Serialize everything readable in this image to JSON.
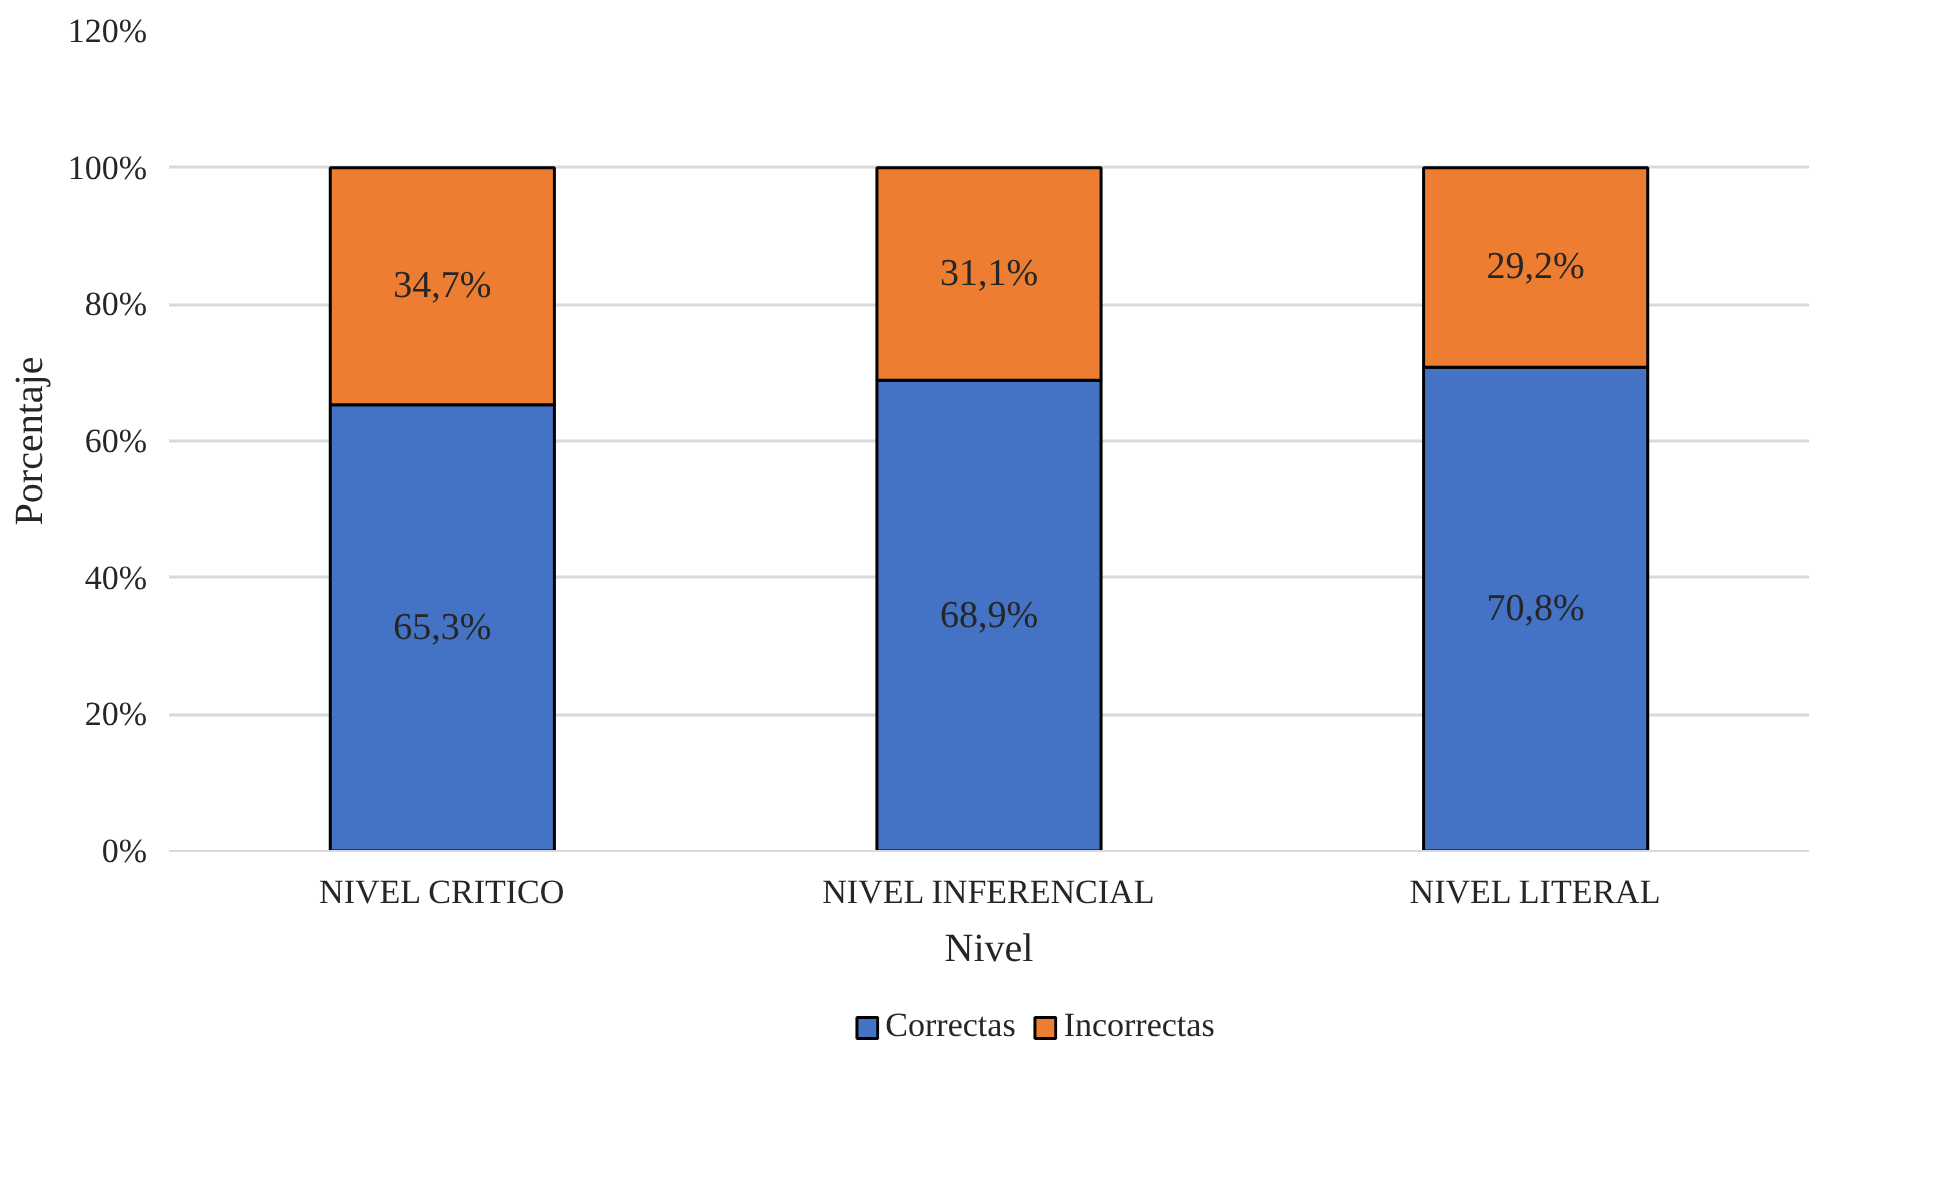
{
  "chart_data": {
    "type": "bar",
    "stacked": true,
    "xlabel": "Nivel",
    "ylabel": "Porcentaje",
    "categories": [
      "NIVEL CRITICO",
      "NIVEL INFERENCIAL",
      "NIVEL LITERAL"
    ],
    "series": [
      {
        "name": "Correctas",
        "color": "#4472c4",
        "values": [
          65.3,
          68.9,
          70.8
        ],
        "value_labels": [
          "65,3%",
          "68,9%",
          "70,8%"
        ]
      },
      {
        "name": "Incorrectas",
        "color": "#ed7d31",
        "values": [
          34.7,
          31.1,
          29.2
        ],
        "value_labels": [
          "34,7%",
          "31,1%",
          "29,2%"
        ]
      }
    ],
    "ylim": [
      0,
      120
    ],
    "yticks": [
      {
        "value": 0,
        "label": "0%"
      },
      {
        "value": 20,
        "label": "20%"
      },
      {
        "value": 40,
        "label": "40%"
      },
      {
        "value": 60,
        "label": "60%"
      },
      {
        "value": 80,
        "label": "80%"
      },
      {
        "value": 100,
        "label": "100%"
      },
      {
        "value": 120,
        "label": "120%"
      }
    ],
    "grid": "y",
    "legend": "bottom"
  }
}
